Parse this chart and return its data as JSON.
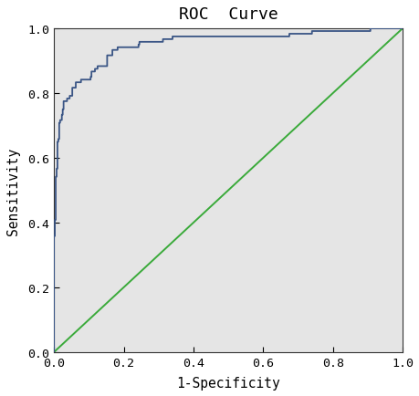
{
  "title": "ROC  Curve",
  "xlabel": "1-Specificity",
  "ylabel": "Sensitivity",
  "xlim": [
    0.0,
    1.0
  ],
  "ylim": [
    0.0,
    1.0
  ],
  "xticks": [
    0.0,
    0.2,
    0.4,
    0.6,
    0.8,
    1.0
  ],
  "yticks": [
    0.0,
    0.2,
    0.4,
    0.6,
    0.8,
    1.0
  ],
  "roc_color": "#3a5585",
  "diag_color": "#3aaa3a",
  "background_color": "#e5e5e5",
  "title_fontsize": 13,
  "label_fontsize": 10.5,
  "tick_fontsize": 9.5,
  "roc_linewidth": 1.3,
  "diag_linewidth": 1.4,
  "seed": 7
}
